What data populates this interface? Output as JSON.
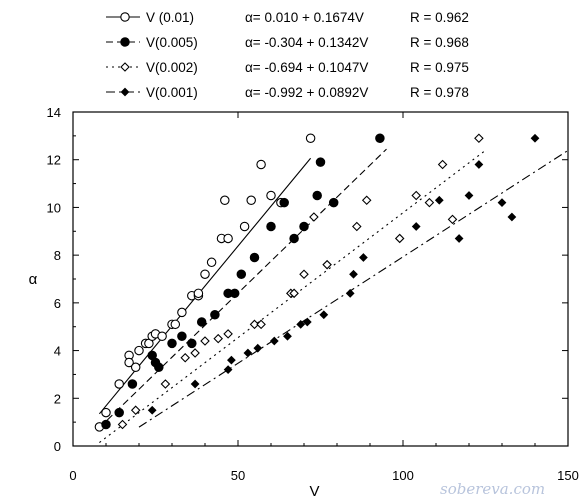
{
  "chart_data": {
    "type": "scatter",
    "xlabel": "V",
    "ylabel": "α",
    "xlim": [
      0,
      150
    ],
    "ylim": [
      0,
      14
    ],
    "xticks": [
      0,
      50,
      100,
      150
    ],
    "yticks": [
      0,
      2,
      4,
      6,
      8,
      10,
      12,
      14
    ],
    "grid": false,
    "legend_position": "top-outside",
    "series": [
      {
        "name": "V (0.01)",
        "marker": "open-circle",
        "line": "solid",
        "equation": "α= 0.010 + 0.1674V",
        "r": "R = 0.962",
        "intercept": 0.01,
        "slope": 0.1674,
        "fit_x": [
          8,
          72
        ],
        "points": [
          [
            8,
            0.8
          ],
          [
            10,
            1.4
          ],
          [
            14,
            2.6
          ],
          [
            17,
            3.8
          ],
          [
            17,
            3.5
          ],
          [
            19,
            3.3
          ],
          [
            20,
            4.0
          ],
          [
            22,
            4.3
          ],
          [
            23,
            4.3
          ],
          [
            24,
            4.6
          ],
          [
            25,
            4.7
          ],
          [
            27,
            4.6
          ],
          [
            30,
            5.1
          ],
          [
            31,
            5.1
          ],
          [
            33,
            5.6
          ],
          [
            36,
            6.3
          ],
          [
            38,
            6.3
          ],
          [
            38,
            6.4
          ],
          [
            40,
            7.2
          ],
          [
            42,
            7.7
          ],
          [
            45,
            8.7
          ],
          [
            46,
            10.3
          ],
          [
            47,
            8.7
          ],
          [
            52,
            9.2
          ],
          [
            54,
            10.3
          ],
          [
            57,
            11.8
          ],
          [
            60,
            10.5
          ],
          [
            63,
            10.2
          ],
          [
            72,
            12.9
          ]
        ]
      },
      {
        "name": "V(0.005)",
        "marker": "filled-circle",
        "line": "dashed",
        "equation": "α= -0.304 + 0.1342V",
        "r": "R = 0.968",
        "intercept": -0.304,
        "slope": 0.1342,
        "fit_x": [
          8,
          95
        ],
        "points": [
          [
            10,
            0.9
          ],
          [
            14,
            1.4
          ],
          [
            18,
            2.6
          ],
          [
            24,
            3.8
          ],
          [
            25,
            3.5
          ],
          [
            26,
            3.3
          ],
          [
            30,
            4.3
          ],
          [
            33,
            4.6
          ],
          [
            36,
            4.3
          ],
          [
            39,
            5.2
          ],
          [
            43,
            5.5
          ],
          [
            47,
            6.4
          ],
          [
            49,
            6.4
          ],
          [
            51,
            7.2
          ],
          [
            55,
            7.9
          ],
          [
            60,
            9.2
          ],
          [
            64,
            10.2
          ],
          [
            67,
            8.7
          ],
          [
            70,
            9.2
          ],
          [
            74,
            10.5
          ],
          [
            75,
            11.9
          ],
          [
            79,
            10.2
          ],
          [
            93,
            12.9
          ]
        ]
      },
      {
        "name": "V(0.002)",
        "marker": "open-diamond",
        "line": "dotted",
        "equation": "α= -0.694 + 0.1047V",
        "r": "R = 0.975",
        "intercept": -0.694,
        "slope": 0.1047,
        "fit_x": [
          8,
          125
        ],
        "points": [
          [
            15,
            0.9
          ],
          [
            19,
            1.5
          ],
          [
            28,
            2.6
          ],
          [
            34,
            3.7
          ],
          [
            37,
            3.9
          ],
          [
            40,
            4.4
          ],
          [
            44,
            4.5
          ],
          [
            47,
            4.7
          ],
          [
            55,
            5.1
          ],
          [
            57,
            5.1
          ],
          [
            66,
            6.4
          ],
          [
            67,
            6.4
          ],
          [
            70,
            7.2
          ],
          [
            73,
            9.6
          ],
          [
            77,
            7.6
          ],
          [
            86,
            9.2
          ],
          [
            89,
            10.3
          ],
          [
            99,
            8.7
          ],
          [
            104,
            10.5
          ],
          [
            108,
            10.2
          ],
          [
            112,
            11.8
          ],
          [
            115,
            9.5
          ],
          [
            123,
            12.9
          ]
        ]
      },
      {
        "name": "V(0.001)",
        "marker": "filled-diamond",
        "line": "dash-dot",
        "equation": "α= -0.992 + 0.0892V",
        "r": "R = 0.978",
        "intercept": -0.992,
        "slope": 0.0892,
        "fit_x": [
          20,
          150
        ],
        "points": [
          [
            24,
            1.5
          ],
          [
            37,
            2.6
          ],
          [
            47,
            3.2
          ],
          [
            48,
            3.6
          ],
          [
            53,
            3.9
          ],
          [
            56,
            4.1
          ],
          [
            61,
            4.4
          ],
          [
            65,
            4.6
          ],
          [
            69,
            5.1
          ],
          [
            71,
            5.2
          ],
          [
            76,
            5.5
          ],
          [
            84,
            6.4
          ],
          [
            85,
            7.2
          ],
          [
            88,
            7.9
          ],
          [
            104,
            9.2
          ],
          [
            111,
            10.3
          ],
          [
            117,
            8.7
          ],
          [
            120,
            10.5
          ],
          [
            123,
            11.8
          ],
          [
            130,
            10.2
          ],
          [
            133,
            9.6
          ],
          [
            140,
            12.9
          ]
        ]
      }
    ]
  },
  "watermark": "sobereva.com"
}
